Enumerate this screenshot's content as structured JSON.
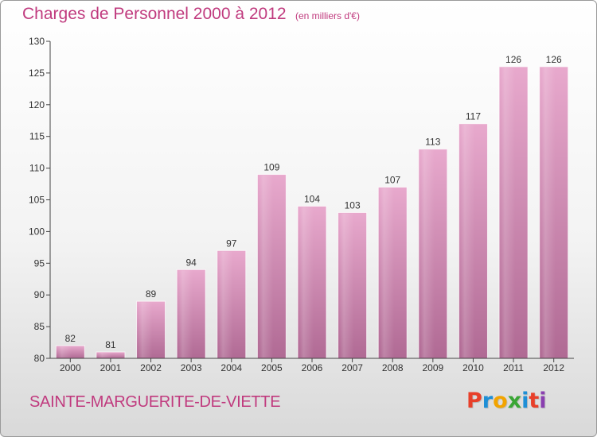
{
  "chart_data": {
    "type": "bar",
    "title": "Charges de Personnel 2000 à 2012",
    "subtitle": "(en milliers d'€)",
    "categories": [
      "2000",
      "2001",
      "2002",
      "2003",
      "2004",
      "2005",
      "2006",
      "2007",
      "2008",
      "2009",
      "2010",
      "2011",
      "2012"
    ],
    "values": [
      82,
      81,
      89,
      94,
      97,
      109,
      104,
      103,
      107,
      113,
      117,
      126,
      126
    ],
    "ylim": [
      80,
      130
    ],
    "yticks": [
      80,
      85,
      90,
      95,
      100,
      105,
      110,
      115,
      120,
      125,
      130
    ],
    "grid": false,
    "legend": "none",
    "bar_color": "#d98bb8",
    "xlabel": "",
    "ylabel": ""
  },
  "footer": {
    "town": "SAINTE-MARGUERITE-DE-VIETTE",
    "logo": "Proxiti"
  },
  "colors": {
    "accent": "#c03a7e",
    "logo_letters": [
      "#e8402a",
      "#1e8fd6",
      "#f2a400",
      "#3aa635",
      "#1e8fd6",
      "#e8402a",
      "#8a3fb0"
    ]
  }
}
